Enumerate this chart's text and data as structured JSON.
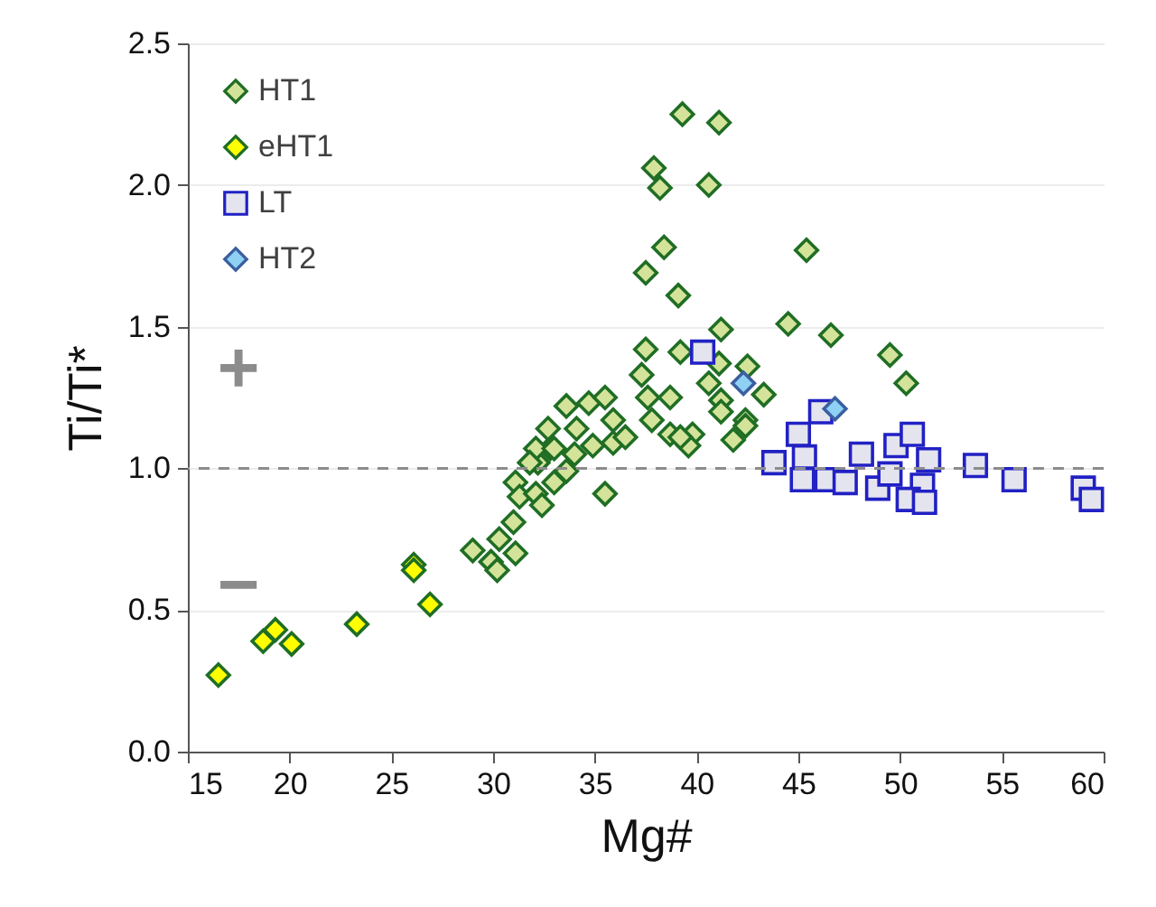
{
  "chart_data": {
    "type": "scatter",
    "xlabel": "Mg#",
    "ylabel": "Ti/Ti*",
    "xlim": [
      15,
      60
    ],
    "xticks": [
      15,
      20,
      25,
      30,
      35,
      40,
      45,
      50,
      55,
      60
    ],
    "ylim": [
      0,
      2.5
    ],
    "yticks": [
      {
        "value": 0,
        "label": "0.0"
      },
      0.5,
      {
        "value": 1,
        "label": "1.0"
      },
      1.5,
      {
        "value": 2,
        "label": "2.0"
      },
      2.5
    ],
    "grid": "y",
    "legend": "top left",
    "series": [
      {
        "name": "HT1",
        "color": "#d4e39a",
        "marker": "diamond",
        "x": [
          29.0,
          29.9,
          30.2,
          30.3,
          31.1,
          31.0,
          31.1,
          31.3,
          32.1,
          32.4,
          32.2,
          33.0,
          33.6,
          32.8,
          34.0,
          34.9,
          35.5,
          35.9,
          39.3,
          41.1,
          37.9,
          38.2,
          40.6,
          38.4,
          37.5,
          39.1,
          45.4,
          41.2,
          44.5,
          46.6,
          37.5,
          39.2,
          37.3,
          41.1,
          42.5,
          40.6,
          43.3,
          37.6,
          38.7,
          41.2,
          33.6,
          34.7,
          35.5,
          35.9,
          36.5,
          34.1,
          37.8,
          38.7,
          39.8,
          41.2,
          42.4,
          41.8,
          39.6,
          39.2,
          32.7,
          32.1,
          31.8,
          33.0,
          49.5,
          50.3,
          42.4
        ],
        "values": [
          0.71,
          0.67,
          0.64,
          0.75,
          0.7,
          0.81,
          0.95,
          0.9,
          0.91,
          0.87,
          1.02,
          0.95,
          0.99,
          1.07,
          1.05,
          1.08,
          0.91,
          1.09,
          2.25,
          2.22,
          2.06,
          1.99,
          2.0,
          1.78,
          1.69,
          1.61,
          1.77,
          1.49,
          1.51,
          1.47,
          1.42,
          1.41,
          1.33,
          1.37,
          1.36,
          1.3,
          1.26,
          1.25,
          1.25,
          1.24,
          1.22,
          1.23,
          1.25,
          1.17,
          1.11,
          1.14,
          1.17,
          1.12,
          1.12,
          1.2,
          1.17,
          1.1,
          1.08,
          1.11,
          1.14,
          1.07,
          1.02,
          1.07,
          1.4,
          1.3,
          1.15
        ]
      },
      {
        "name": "eHT1",
        "color": "#ffff00",
        "marker": "diamond",
        "x": [
          16.5,
          18.7,
          19.3,
          20.1,
          23.3,
          26.1,
          26.1,
          26.9
        ],
        "values": [
          0.27,
          0.39,
          0.43,
          0.38,
          0.45,
          0.66,
          0.64,
          0.52
        ]
      },
      {
        "name": "LT",
        "color": "#e4e4ee",
        "marker": "square",
        "x": [
          40.3,
          46.1,
          45.0,
          43.8,
          45.3,
          45.2,
          46.4,
          47.3,
          48.1,
          48.9,
          49.8,
          50.6,
          49.5,
          51.4,
          51.1,
          50.4,
          51.2,
          53.7,
          55.6,
          59.0,
          59.4
        ],
        "values": [
          1.41,
          1.2,
          1.12,
          1.02,
          1.04,
          0.96,
          0.96,
          0.95,
          1.05,
          0.93,
          1.08,
          1.12,
          0.98,
          1.03,
          0.94,
          0.89,
          0.88,
          1.01,
          0.96,
          0.93,
          0.89
        ]
      },
      {
        "name": "HT2",
        "color": "#8fd0f5",
        "marker": "diamond",
        "x": [
          42.3,
          46.8
        ],
        "values": [
          1.3,
          1.21
        ]
      }
    ],
    "ref_lines": [
      {
        "axis": "y",
        "value": 1,
        "color": "#8c8c8c",
        "line_style": "dashed"
      }
    ],
    "annotations": [
      "+",
      "−"
    ]
  }
}
